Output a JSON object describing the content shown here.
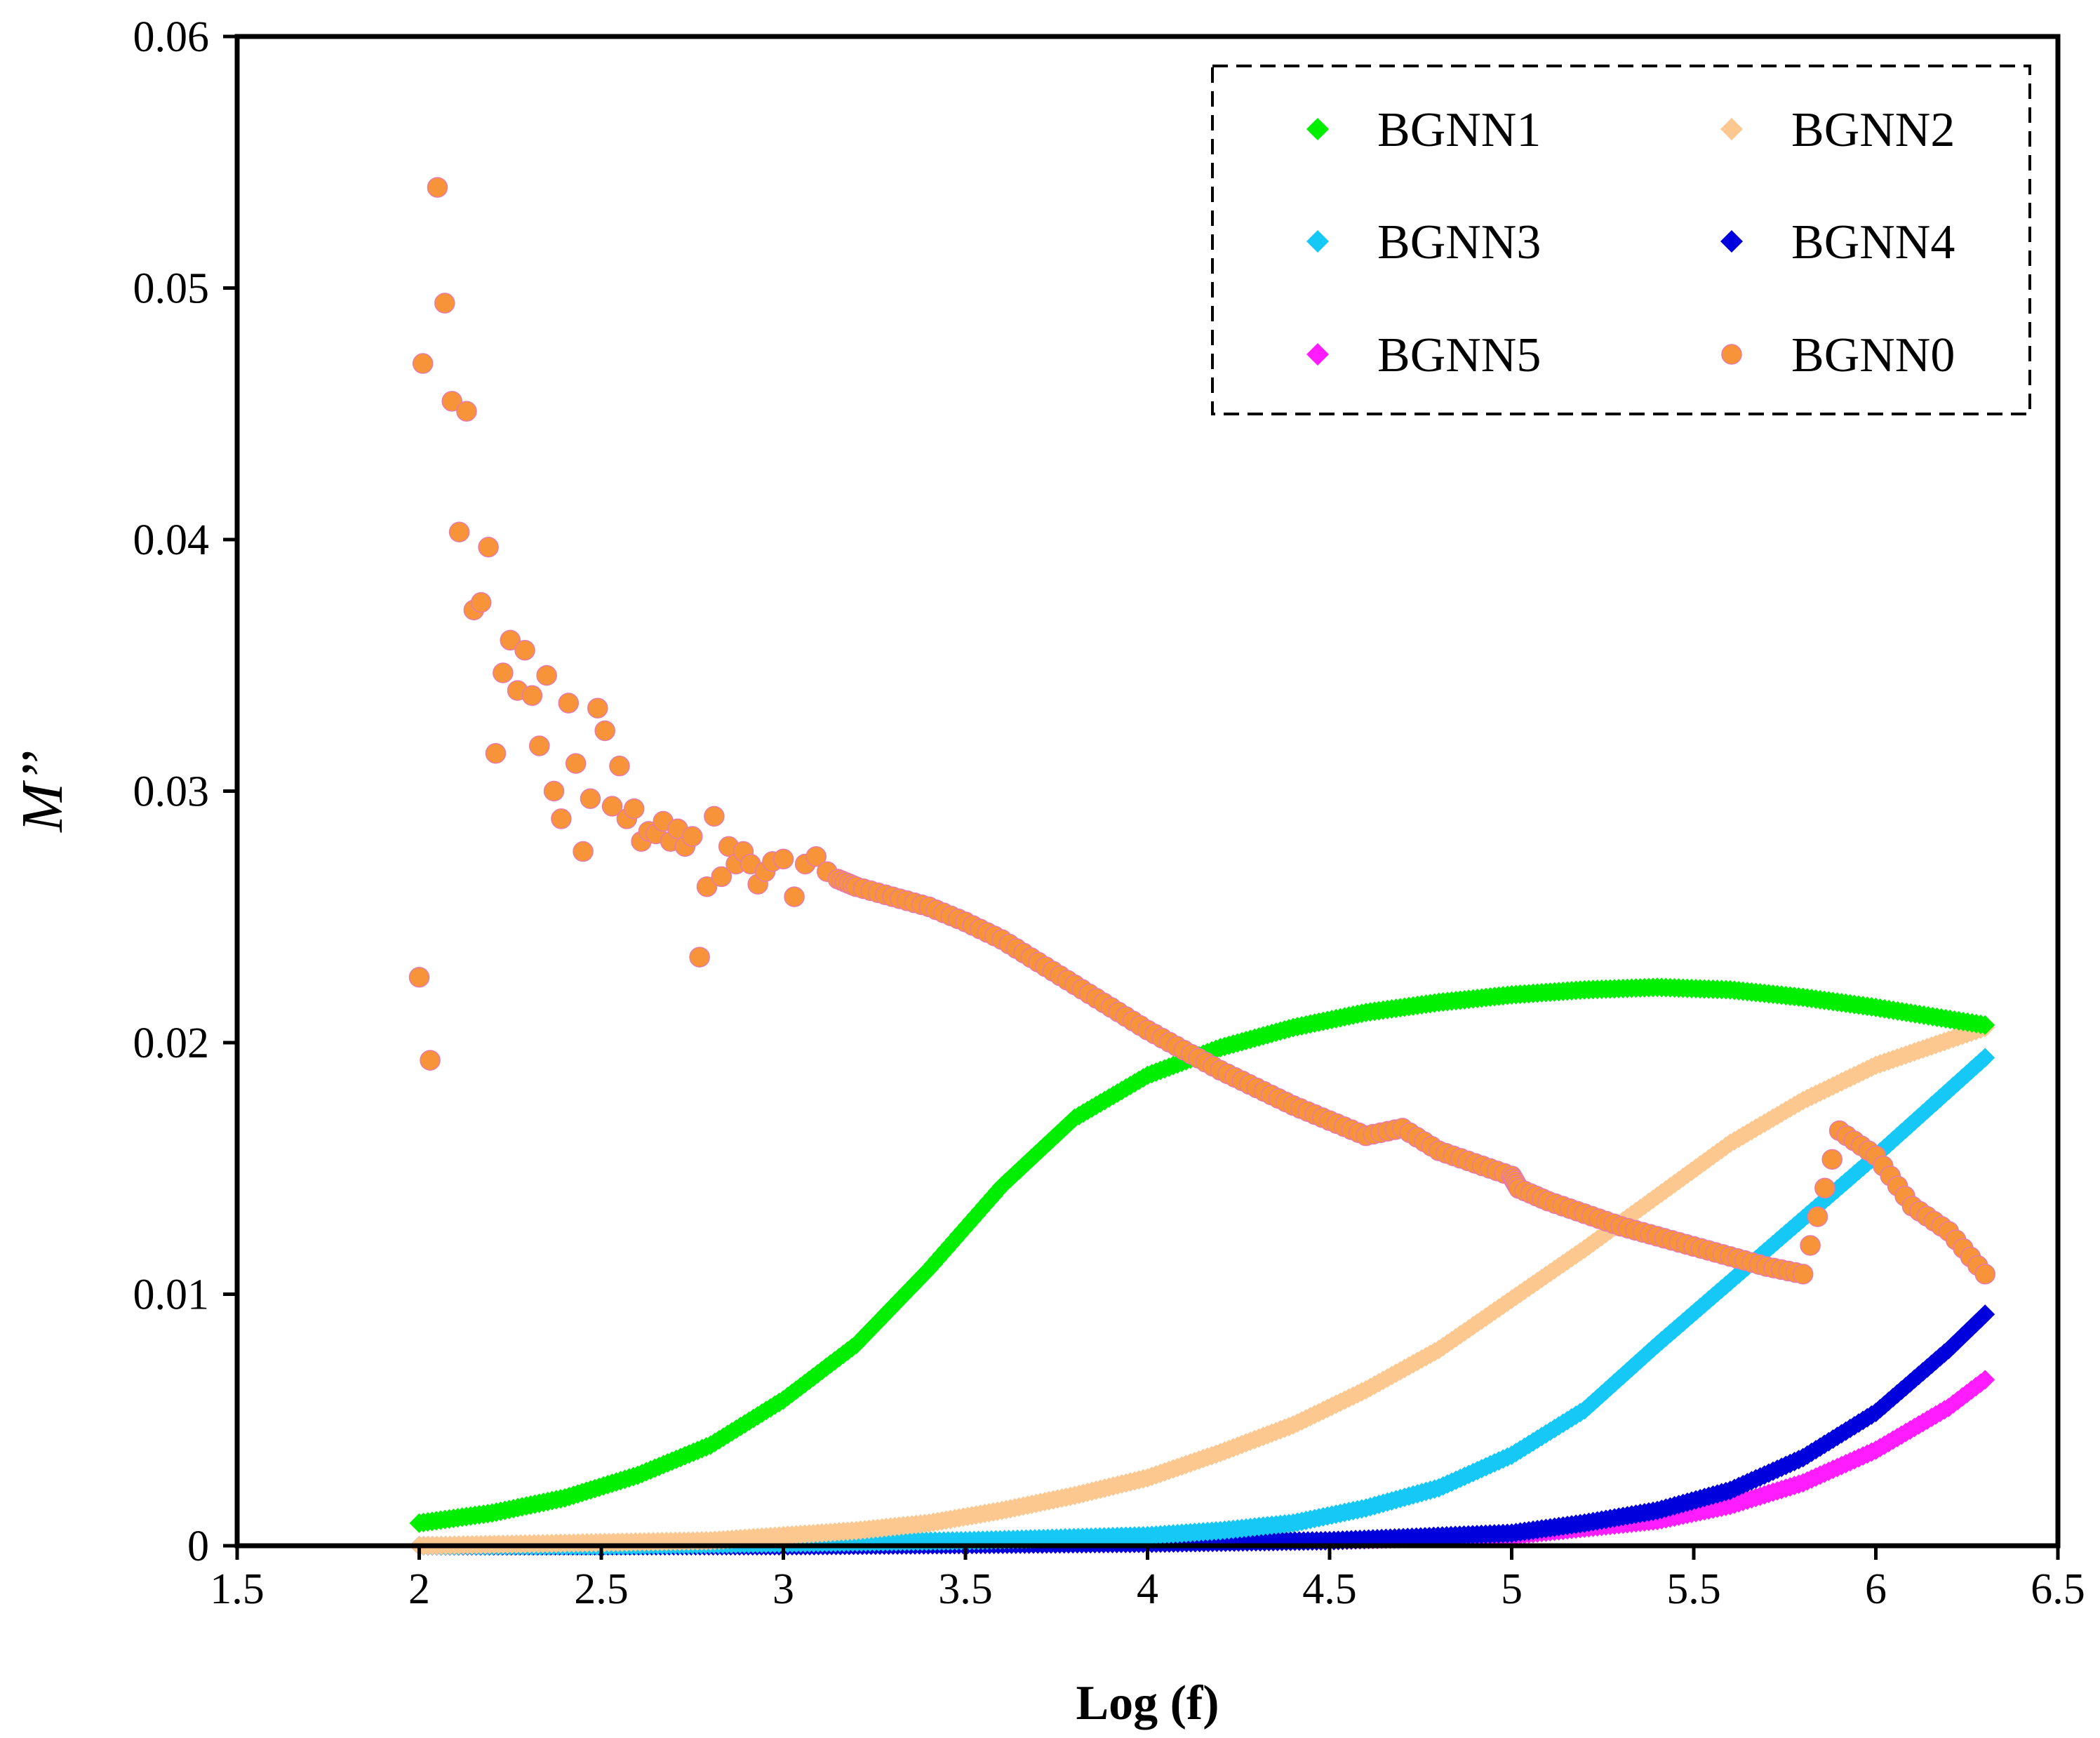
{
  "chart_data": {
    "type": "scatter",
    "title": "",
    "xlabel": "Log (f)",
    "ylabel": "M’’",
    "xlim": [
      1.5,
      6.5
    ],
    "ylim": [
      0,
      0.06
    ],
    "x_ticks": [
      1.5,
      2,
      2.5,
      3,
      3.5,
      4,
      4.5,
      5,
      5.5,
      6,
      6.5
    ],
    "x_tick_labels": [
      "1.5",
      "2",
      "2.5",
      "3",
      "3.5",
      "4",
      "4.5",
      "5",
      "5.5",
      "6",
      "6.5"
    ],
    "y_ticks": [
      0,
      0.01,
      0.02,
      0.03,
      0.04,
      0.05,
      0.06
    ],
    "y_tick_labels": [
      "0",
      "0.01",
      "0.02",
      "0.03",
      "0.04",
      "0.05",
      "0.06"
    ],
    "grid": false,
    "legend_position": "top-right",
    "series": [
      {
        "name": "BGNN1",
        "color": "#00ee00",
        "marker": "diamond",
        "x": [
          2.0,
          2.2,
          2.4,
          2.6,
          2.8,
          3.0,
          3.2,
          3.4,
          3.6,
          3.8,
          4.0,
          4.2,
          4.4,
          4.6,
          4.8,
          5.0,
          5.2,
          5.4,
          5.6,
          5.8,
          6.0,
          6.3
        ],
        "y": [
          0.0009,
          0.0013,
          0.0019,
          0.0028,
          0.004,
          0.0058,
          0.008,
          0.011,
          0.0143,
          0.017,
          0.0187,
          0.0198,
          0.0206,
          0.0212,
          0.0216,
          0.0219,
          0.0221,
          0.0222,
          0.0221,
          0.0218,
          0.0214,
          0.0207
        ]
      },
      {
        "name": "BGNN2",
        "color": "#fcc890",
        "marker": "diamond",
        "x": [
          2.0,
          2.4,
          2.8,
          3.0,
          3.2,
          3.4,
          3.6,
          3.8,
          4.0,
          4.2,
          4.4,
          4.6,
          4.8,
          5.0,
          5.2,
          5.4,
          5.6,
          5.8,
          6.0,
          6.2,
          6.3
        ],
        "y": [
          0.0,
          0.0001,
          0.0002,
          0.0004,
          0.0006,
          0.0009,
          0.0014,
          0.002,
          0.0027,
          0.0037,
          0.0048,
          0.0062,
          0.0078,
          0.0098,
          0.0118,
          0.0139,
          0.016,
          0.0177,
          0.0191,
          0.0201,
          0.0206
        ]
      },
      {
        "name": "BGNN3",
        "color": "#16c8f5",
        "marker": "diamond",
        "x": [
          2.0,
          2.5,
          3.0,
          3.5,
          4.0,
          4.2,
          4.4,
          4.6,
          4.8,
          5.0,
          5.2,
          5.4,
          5.6,
          5.8,
          6.0,
          6.2,
          6.3
        ],
        "y": [
          0.0,
          0.0,
          0.0001,
          0.0002,
          0.0004,
          0.0006,
          0.0009,
          0.0015,
          0.0023,
          0.0036,
          0.0054,
          0.008,
          0.0105,
          0.013,
          0.0155,
          0.0181,
          0.0194
        ]
      },
      {
        "name": "BGNN4",
        "color": "#0000dd",
        "marker": "diamond",
        "x": [
          2.0,
          3.0,
          4.0,
          4.5,
          5.0,
          5.2,
          5.4,
          5.6,
          5.8,
          6.0,
          6.2,
          6.3
        ],
        "y": [
          0.0,
          0.0,
          0.0001,
          0.0002,
          0.0005,
          0.0009,
          0.0014,
          0.0022,
          0.0035,
          0.0053,
          0.0078,
          0.0092
        ]
      },
      {
        "name": "BGNN5",
        "color": "#ff1dff",
        "marker": "diamond",
        "x": [
          2.0,
          3.0,
          4.0,
          4.5,
          5.0,
          5.2,
          5.4,
          5.6,
          5.8,
          6.0,
          6.2,
          6.3
        ],
        "y": [
          0.0,
          0.0,
          0.0001,
          0.0002,
          0.0004,
          0.0007,
          0.001,
          0.0016,
          0.0025,
          0.0038,
          0.0055,
          0.0066
        ]
      },
      {
        "name": "BGNN0",
        "color": "#f7943a",
        "marker": "circle",
        "x": [
          2.0,
          2.01,
          2.03,
          2.05,
          2.07,
          2.09,
          2.11,
          2.13,
          2.15,
          2.17,
          2.19,
          2.21,
          2.23,
          2.25,
          2.27,
          2.29,
          2.31,
          2.33,
          2.35,
          2.37,
          2.39,
          2.41,
          2.43,
          2.45,
          2.47,
          2.49,
          2.51,
          2.53,
          2.55,
          2.57,
          2.59,
          2.61,
          2.63,
          2.65,
          2.67,
          2.69,
          2.71,
          2.73,
          2.75,
          2.77,
          2.79,
          2.81,
          2.83,
          2.85,
          2.87,
          2.89,
          2.91,
          2.93,
          2.95,
          2.97,
          3.0,
          3.03,
          3.06,
          3.09,
          3.12,
          3.15,
          3.2,
          3.3,
          3.4,
          3.5,
          3.6,
          3.7,
          3.8,
          3.9,
          4.0,
          4.1,
          4.2,
          4.3,
          4.4,
          4.5,
          4.6,
          4.7,
          4.8,
          4.9,
          5.0,
          5.02,
          5.1,
          5.2,
          5.3,
          5.4,
          5.5,
          5.6,
          5.7,
          5.8,
          5.9,
          6.0,
          6.1,
          6.2,
          6.3
        ],
        "y": [
          0.0226,
          0.047,
          0.0193,
          0.054,
          0.0494,
          0.0455,
          0.0403,
          0.0451,
          0.0372,
          0.0375,
          0.0397,
          0.0315,
          0.0347,
          0.036,
          0.034,
          0.0356,
          0.0338,
          0.0318,
          0.0346,
          0.03,
          0.0289,
          0.0335,
          0.0311,
          0.0276,
          0.0297,
          0.0333,
          0.0324,
          0.0294,
          0.031,
          0.0289,
          0.0293,
          0.028,
          0.0284,
          0.0283,
          0.0288,
          0.028,
          0.0285,
          0.0278,
          0.0282,
          0.0234,
          0.0262,
          0.029,
          0.0266,
          0.0278,
          0.0271,
          0.0276,
          0.0271,
          0.0263,
          0.0268,
          0.0272,
          0.0273,
          0.0258,
          0.0271,
          0.0274,
          0.0268,
          0.0265,
          0.0262,
          0.0258,
          0.0254,
          0.0248,
          0.0241,
          0.0232,
          0.0223,
          0.0214,
          0.0205,
          0.0197,
          0.0189,
          0.0182,
          0.0175,
          0.0169,
          0.0163,
          0.0166,
          0.0157,
          0.0152,
          0.0147,
          0.0142,
          0.0137,
          0.0132,
          0.0127,
          0.0123,
          0.0119,
          0.0115,
          0.0111,
          0.0108,
          0.0165,
          0.0155,
          0.0135,
          0.0125,
          0.0108
        ]
      }
    ],
    "legend": [
      {
        "label": "BGNN1",
        "color": "#00ee00",
        "marker": "diamond"
      },
      {
        "label": "BGNN2",
        "color": "#fcc890",
        "marker": "diamond"
      },
      {
        "label": "BGNN3",
        "color": "#16c8f5",
        "marker": "diamond"
      },
      {
        "label": "BGNN4",
        "color": "#0000dd",
        "marker": "diamond"
      },
      {
        "label": "BGNN5",
        "color": "#ff1dff",
        "marker": "diamond"
      },
      {
        "label": "BGNN0",
        "color": "#f7943a",
        "marker": "circle"
      }
    ]
  }
}
